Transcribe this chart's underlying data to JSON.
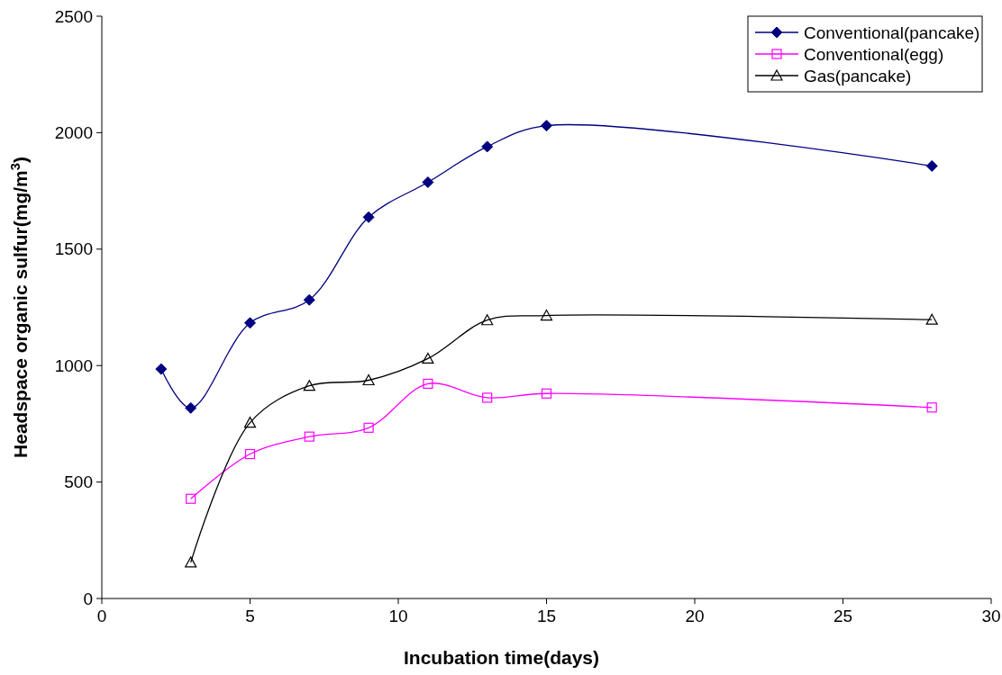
{
  "chart_data": {
    "type": "line",
    "xlabel": "Incubation time(days)",
    "ylabel": "Headspace organic sulfur(mg/m$^{3}$)",
    "xlim": [
      0,
      30
    ],
    "xticks": [
      0,
      5,
      10,
      15,
      20,
      25,
      30
    ],
    "ylim": [
      0,
      2500
    ],
    "yticks": [
      0,
      500,
      1000,
      1500,
      2000,
      2500
    ],
    "grid": false,
    "legend": "top right",
    "series": [
      {
        "name": "Conventional(pancake)",
        "color": "#000080",
        "marker": "diamond",
        "x": [
          2,
          3,
          5,
          7,
          9,
          11,
          13,
          15,
          28
        ],
        "values": [
          985,
          818,
          1183,
          1282,
          1637,
          1787,
          1940,
          2030,
          1857
        ]
      },
      {
        "name": "Conventional(egg)",
        "color": "#ff00ff",
        "marker": "square",
        "x": [
          3,
          5,
          7,
          9,
          11,
          13,
          15,
          28
        ],
        "values": [
          428,
          620,
          695,
          733,
          922,
          862,
          880,
          820
        ]
      },
      {
        "name": "Gas(pancake)",
        "color": "#000000",
        "marker": "triangle",
        "x": [
          3,
          5,
          7,
          9,
          11,
          13,
          15,
          28
        ],
        "values": [
          155,
          755,
          913,
          937,
          1030,
          1195,
          1215,
          1197
        ]
      }
    ]
  }
}
